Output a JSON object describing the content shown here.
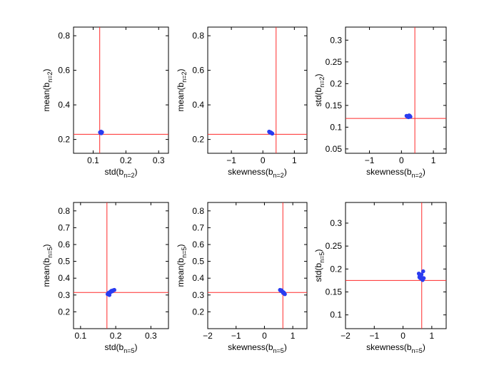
{
  "chart_data": [
    {
      "type": "scatter",
      "xlabel": "std(b",
      "xlabel_sub": "n=2",
      "xlabel_end": ")",
      "ylabel": "mean(b",
      "ylabel_sub": "n=2",
      "ylabel_end": ")",
      "xlim": [
        0.04,
        0.33
      ],
      "ylim": [
        0.12,
        0.85
      ],
      "xticks": [
        0.1,
        0.2,
        0.3
      ],
      "xtick_labels": [
        "0.1",
        "0.2",
        "0.3"
      ],
      "yticks": [
        0.2,
        0.4,
        0.6,
        0.8
      ],
      "ytick_labels": [
        "0.2",
        "0.4",
        "0.6",
        "0.8"
      ],
      "ref_x": 0.12,
      "ref_y": 0.23,
      "points": [
        [
          0.122,
          0.238
        ],
        [
          0.124,
          0.245
        ],
        [
          0.126,
          0.24
        ],
        [
          0.123,
          0.243
        ],
        [
          0.125,
          0.236
        ],
        [
          0.127,
          0.242
        ],
        [
          0.121,
          0.241
        ],
        [
          0.124,
          0.239
        ]
      ]
    },
    {
      "type": "scatter",
      "xlabel": "skewness(b",
      "xlabel_sub": "n=2",
      "xlabel_end": ")",
      "ylabel": "mean(b",
      "ylabel_sub": "n=2",
      "ylabel_end": ")",
      "xlim": [
        -1.75,
        1.4
      ],
      "ylim": [
        0.12,
        0.85
      ],
      "xticks": [
        -1,
        0,
        1
      ],
      "xtick_labels": [
        "−1",
        "0",
        "1"
      ],
      "yticks": [
        0.2,
        0.4,
        0.6,
        0.8
      ],
      "ytick_labels": [
        "0.2",
        "0.4",
        "0.6",
        "0.8"
      ],
      "ref_x": 0.42,
      "ref_y": 0.23,
      "points": [
        [
          0.2,
          0.245
        ],
        [
          0.24,
          0.242
        ],
        [
          0.27,
          0.238
        ],
        [
          0.3,
          0.234
        ],
        [
          0.22,
          0.24
        ],
        [
          0.28,
          0.236
        ],
        [
          0.25,
          0.24
        ]
      ]
    },
    {
      "type": "scatter",
      "xlabel": "skewness(b",
      "xlabel_sub": "n=2",
      "xlabel_end": ")",
      "ylabel": "std(b",
      "ylabel_sub": "n=2",
      "ylabel_end": ")",
      "xlim": [
        -1.75,
        1.4
      ],
      "ylim": [
        0.04,
        0.33
      ],
      "xticks": [
        -1,
        0,
        1
      ],
      "xtick_labels": [
        "−1",
        "0",
        "1"
      ],
      "yticks": [
        0.05,
        0.1,
        0.15,
        0.2,
        0.25,
        0.3
      ],
      "ytick_labels": [
        "0.05",
        "0.1",
        "0.15",
        "0.2",
        "0.25",
        "0.3"
      ],
      "ref_x": 0.42,
      "ref_y": 0.12,
      "points": [
        [
          0.16,
          0.126
        ],
        [
          0.2,
          0.125
        ],
        [
          0.24,
          0.127
        ],
        [
          0.28,
          0.124
        ],
        [
          0.22,
          0.123
        ],
        [
          0.26,
          0.126
        ],
        [
          0.19,
          0.124
        ]
      ]
    },
    {
      "type": "scatter",
      "xlabel": "std(b",
      "xlabel_sub": "n=5",
      "xlabel_end": ")",
      "ylabel": "mean(b",
      "ylabel_sub": "n=5",
      "ylabel_end": ")",
      "xlim": [
        0.08,
        0.35
      ],
      "ylim": [
        0.1,
        0.85
      ],
      "xticks": [
        0.1,
        0.2,
        0.3
      ],
      "xtick_labels": [
        "0.1",
        "0.2",
        "0.3"
      ],
      "yticks": [
        0.2,
        0.3,
        0.4,
        0.5,
        0.6,
        0.7,
        0.8
      ],
      "ytick_labels": [
        "0.2",
        "0.3",
        "0.4",
        "0.5",
        "0.6",
        "0.7",
        "0.8"
      ],
      "ref_x": 0.175,
      "ref_y": 0.315,
      "points": [
        [
          0.177,
          0.305
        ],
        [
          0.18,
          0.31
        ],
        [
          0.183,
          0.315
        ],
        [
          0.185,
          0.32
        ],
        [
          0.188,
          0.325
        ],
        [
          0.19,
          0.322
        ],
        [
          0.193,
          0.328
        ],
        [
          0.196,
          0.33
        ],
        [
          0.182,
          0.3
        ],
        [
          0.186,
          0.318
        ],
        [
          0.179,
          0.312
        ],
        [
          0.191,
          0.326
        ]
      ]
    },
    {
      "type": "scatter",
      "xlabel": "skewness(b",
      "xlabel_sub": "n=5",
      "xlabel_end": ")",
      "ylabel": "mean(b",
      "ylabel_sub": "n=5",
      "ylabel_end": ")",
      "xlim": [
        -2,
        1.5
      ],
      "ylim": [
        0.1,
        0.85
      ],
      "xticks": [
        -2,
        -1,
        0,
        1
      ],
      "xtick_labels": [
        "−2",
        "−1",
        "0",
        "1"
      ],
      "yticks": [
        0.2,
        0.3,
        0.4,
        0.5,
        0.6,
        0.7,
        0.8
      ],
      "ytick_labels": [
        "0.2",
        "0.3",
        "0.4",
        "0.5",
        "0.6",
        "0.7",
        "0.8"
      ],
      "ref_x": 0.65,
      "ref_y": 0.315,
      "points": [
        [
          0.55,
          0.33
        ],
        [
          0.6,
          0.328
        ],
        [
          0.62,
          0.322
        ],
        [
          0.65,
          0.318
        ],
        [
          0.68,
          0.315
        ],
        [
          0.7,
          0.31
        ],
        [
          0.72,
          0.305
        ],
        [
          0.58,
          0.325
        ],
        [
          0.63,
          0.32
        ],
        [
          0.66,
          0.312
        ]
      ]
    },
    {
      "type": "scatter",
      "xlabel": "skewness(b",
      "xlabel_sub": "n=5",
      "xlabel_end": ")",
      "ylabel": "std(b",
      "ylabel_sub": "n=5",
      "ylabel_end": ")",
      "xlim": [
        -2,
        1.5
      ],
      "ylim": [
        0.07,
        0.345
      ],
      "xticks": [
        -2,
        -1,
        0,
        1
      ],
      "xtick_labels": [
        "−2",
        "−1",
        "0",
        "1"
      ],
      "yticks": [
        0.1,
        0.15,
        0.2,
        0.25,
        0.3
      ],
      "ytick_labels": [
        "0.1",
        "0.15",
        "0.2",
        "0.25",
        "0.3"
      ],
      "ref_x": 0.65,
      "ref_y": 0.175,
      "points": [
        [
          0.55,
          0.19
        ],
        [
          0.58,
          0.185
        ],
        [
          0.6,
          0.18
        ],
        [
          0.62,
          0.183
        ],
        [
          0.64,
          0.188
        ],
        [
          0.66,
          0.178
        ],
        [
          0.68,
          0.176
        ],
        [
          0.7,
          0.195
        ],
        [
          0.72,
          0.18
        ],
        [
          0.57,
          0.182
        ],
        [
          0.63,
          0.186
        ],
        [
          0.69,
          0.179
        ]
      ]
    }
  ]
}
